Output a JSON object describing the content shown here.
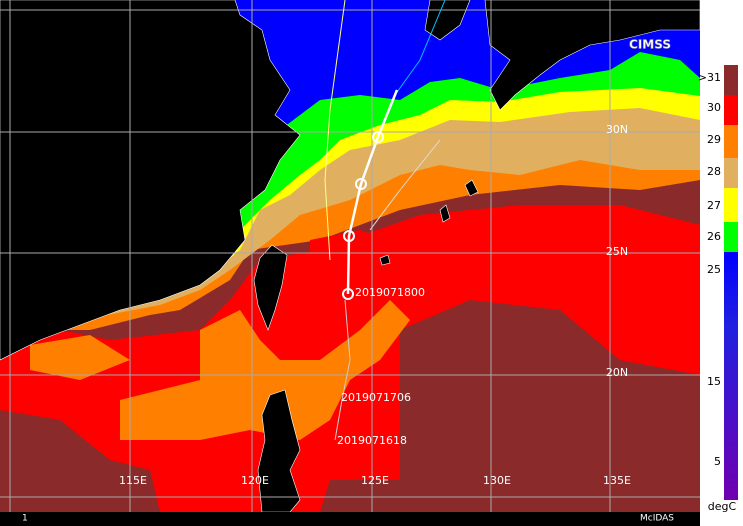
{
  "map": {
    "logo": "CIMSS",
    "lon_labels": [
      "115E",
      "120E",
      "125E",
      "130E",
      "135E"
    ],
    "lat_labels": [
      "30N",
      "25N",
      "20N"
    ],
    "track_labels": [
      "2019071800",
      "2019071706",
      "2019071618"
    ],
    "colorbar": {
      "labels": [
        ">31",
        "30",
        "29",
        "28",
        "27",
        "26",
        "25",
        "15",
        "5"
      ],
      "unit": "degC"
    },
    "footer": {
      "frame": "1",
      "software": "McIDAS"
    }
  }
}
